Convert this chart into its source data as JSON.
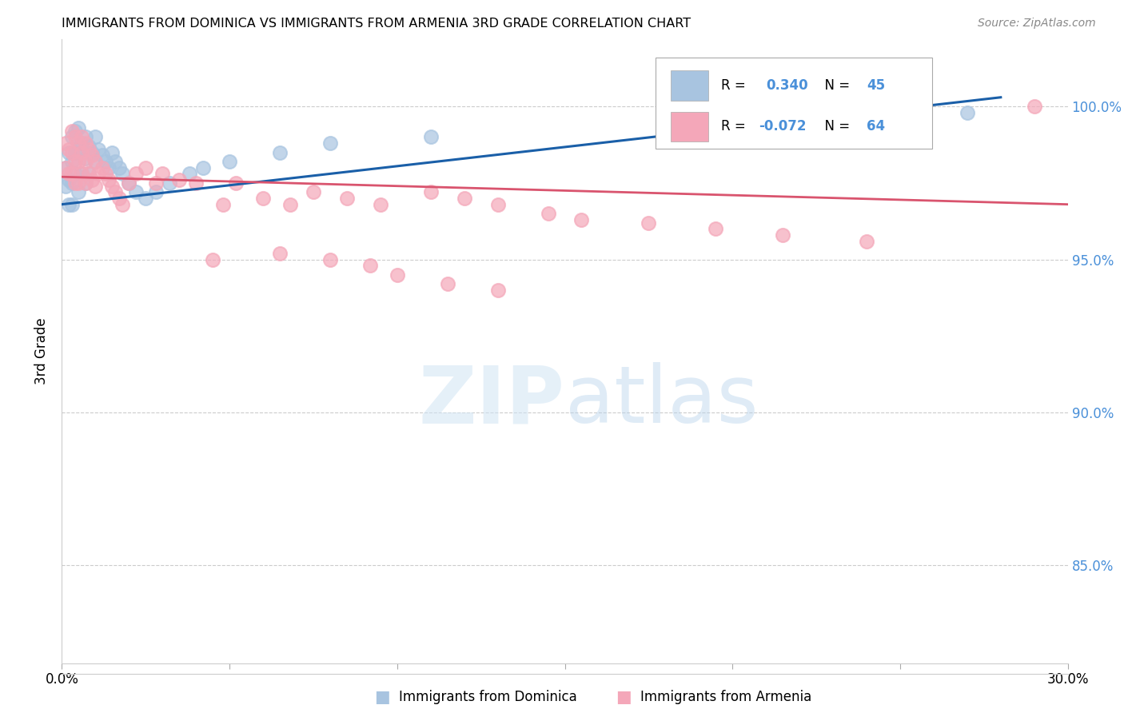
{
  "title": "IMMIGRANTS FROM DOMINICA VS IMMIGRANTS FROM ARMENIA 3RD GRADE CORRELATION CHART",
  "source": "Source: ZipAtlas.com",
  "ylabel": "3rd Grade",
  "ytick_labels": [
    "85.0%",
    "90.0%",
    "95.0%",
    "100.0%"
  ],
  "ytick_values": [
    0.85,
    0.9,
    0.95,
    1.0
  ],
  "xlim": [
    0.0,
    0.3
  ],
  "ylim": [
    0.818,
    1.022
  ],
  "legend_blue_r": "R =  0.340",
  "legend_blue_n": "N = 45",
  "legend_pink_r": "R = -0.072",
  "legend_pink_n": "N = 64",
  "legend_label_blue": "Immigrants from Dominica",
  "legend_label_pink": "Immigrants from Armenia",
  "blue_color": "#a8c4e0",
  "pink_color": "#f4a7b9",
  "blue_line_color": "#1a5fa8",
  "pink_line_color": "#d9546e",
  "blue_scatter_x": [
    0.001,
    0.001,
    0.002,
    0.002,
    0.002,
    0.003,
    0.003,
    0.003,
    0.003,
    0.004,
    0.004,
    0.004,
    0.005,
    0.005,
    0.005,
    0.006,
    0.006,
    0.007,
    0.007,
    0.007,
    0.008,
    0.008,
    0.009,
    0.01,
    0.01,
    0.011,
    0.012,
    0.013,
    0.014,
    0.015,
    0.016,
    0.017,
    0.018,
    0.02,
    0.022,
    0.025,
    0.028,
    0.032,
    0.038,
    0.042,
    0.05,
    0.065,
    0.08,
    0.11,
    0.27
  ],
  "blue_scatter_y": [
    0.98,
    0.974,
    0.985,
    0.976,
    0.968,
    0.99,
    0.982,
    0.975,
    0.968,
    0.992,
    0.985,
    0.978,
    0.993,
    0.986,
    0.972,
    0.988,
    0.978,
    0.99,
    0.983,
    0.975,
    0.987,
    0.978,
    0.985,
    0.99,
    0.982,
    0.986,
    0.984,
    0.982,
    0.98,
    0.985,
    0.982,
    0.98,
    0.978,
    0.975,
    0.972,
    0.97,
    0.972,
    0.975,
    0.978,
    0.98,
    0.982,
    0.985,
    0.988,
    0.99,
    0.998
  ],
  "pink_scatter_x": [
    0.001,
    0.001,
    0.002,
    0.002,
    0.003,
    0.003,
    0.003,
    0.004,
    0.004,
    0.004,
    0.005,
    0.005,
    0.005,
    0.006,
    0.006,
    0.006,
    0.007,
    0.007,
    0.007,
    0.008,
    0.008,
    0.009,
    0.009,
    0.01,
    0.01,
    0.011,
    0.012,
    0.013,
    0.014,
    0.015,
    0.016,
    0.017,
    0.018,
    0.02,
    0.022,
    0.025,
    0.028,
    0.03,
    0.035,
    0.04,
    0.048,
    0.052,
    0.06,
    0.068,
    0.075,
    0.085,
    0.095,
    0.11,
    0.12,
    0.13,
    0.145,
    0.155,
    0.175,
    0.195,
    0.215,
    0.24,
    0.065,
    0.08,
    0.092,
    0.1,
    0.115,
    0.13,
    0.045,
    0.29
  ],
  "pink_scatter_y": [
    0.988,
    0.98,
    0.986,
    0.978,
    0.992,
    0.985,
    0.978,
    0.99,
    0.982,
    0.975,
    0.988,
    0.982,
    0.975,
    0.99,
    0.985,
    0.978,
    0.988,
    0.982,
    0.975,
    0.986,
    0.978,
    0.984,
    0.976,
    0.982,
    0.974,
    0.978,
    0.98,
    0.978,
    0.976,
    0.974,
    0.972,
    0.97,
    0.968,
    0.975,
    0.978,
    0.98,
    0.975,
    0.978,
    0.976,
    0.975,
    0.968,
    0.975,
    0.97,
    0.968,
    0.972,
    0.97,
    0.968,
    0.972,
    0.97,
    0.968,
    0.965,
    0.963,
    0.962,
    0.96,
    0.958,
    0.956,
    0.952,
    0.95,
    0.948,
    0.945,
    0.942,
    0.94,
    0.95,
    1.0
  ],
  "blue_line_x": [
    0.0,
    0.28
  ],
  "blue_line_y": [
    0.968,
    1.003
  ],
  "pink_line_x": [
    0.0,
    0.3
  ],
  "pink_line_y": [
    0.977,
    0.968
  ]
}
